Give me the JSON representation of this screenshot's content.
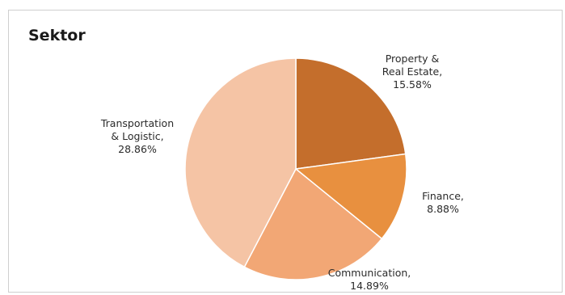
{
  "chart_data": {
    "type": "pie",
    "title": "Sektor",
    "slices": [
      {
        "label_lines": [
          "Property &",
          "Real Estate,",
          "15.58%"
        ],
        "value": 15.58,
        "color": "#c46e2c"
      },
      {
        "label_lines": [
          "Finance,",
          "8.88%"
        ],
        "value": 8.88,
        "color": "#e8903f"
      },
      {
        "label_lines": [
          "Communication,",
          "14.89%"
        ],
        "value": 14.89,
        "color": "#f2a775"
      },
      {
        "label_lines": [
          "Transportation",
          "& Logistic,",
          "28.86%"
        ],
        "value": 28.86,
        "color": "#f5c4a5"
      }
    ],
    "start_angle_deg": 0,
    "direction": "clockwise",
    "legend": "none"
  }
}
